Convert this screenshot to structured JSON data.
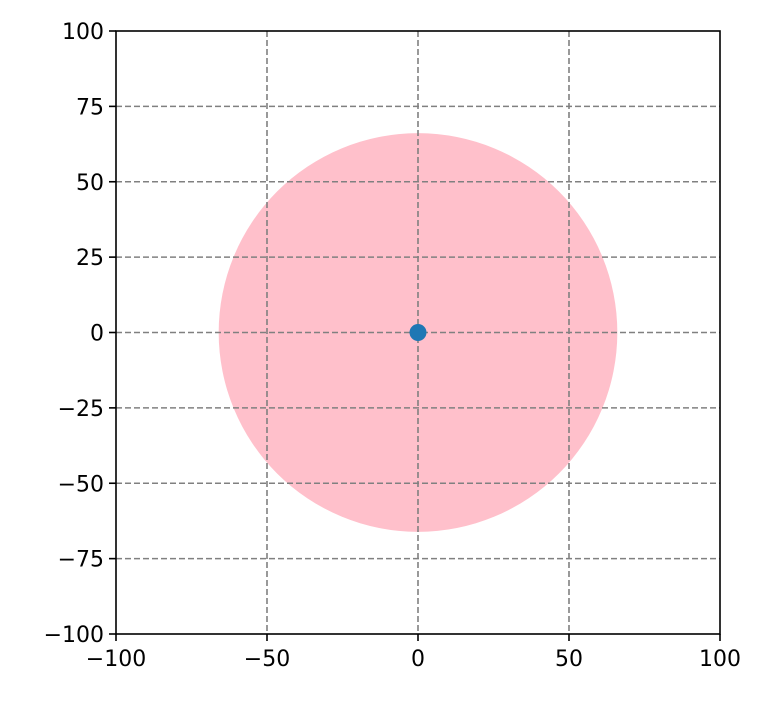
{
  "chart_data": {
    "type": "scatter",
    "title": "",
    "xlabel": "",
    "ylabel": "",
    "xlim": [
      -100,
      100
    ],
    "ylim": [
      -100,
      100
    ],
    "xticks": [
      -100,
      -50,
      0,
      50,
      100
    ],
    "yticks": [
      -100,
      -75,
      -50,
      -25,
      0,
      25,
      50,
      75,
      100
    ],
    "xtick_labels": [
      "−100",
      "−50",
      "0",
      "50",
      "100"
    ],
    "ytick_labels": [
      "−100",
      "−75",
      "−50",
      "−25",
      "0",
      "25",
      "50",
      "75",
      "100"
    ],
    "grid": true,
    "grid_style": "dashed",
    "grid_color": "#808080",
    "points": [
      {
        "x": 0,
        "y": 0
      }
    ],
    "point_color": "#1f77b4",
    "circle": {
      "center": [
        0,
        0
      ],
      "radius": 66,
      "color": "#ffc0cb"
    }
  }
}
